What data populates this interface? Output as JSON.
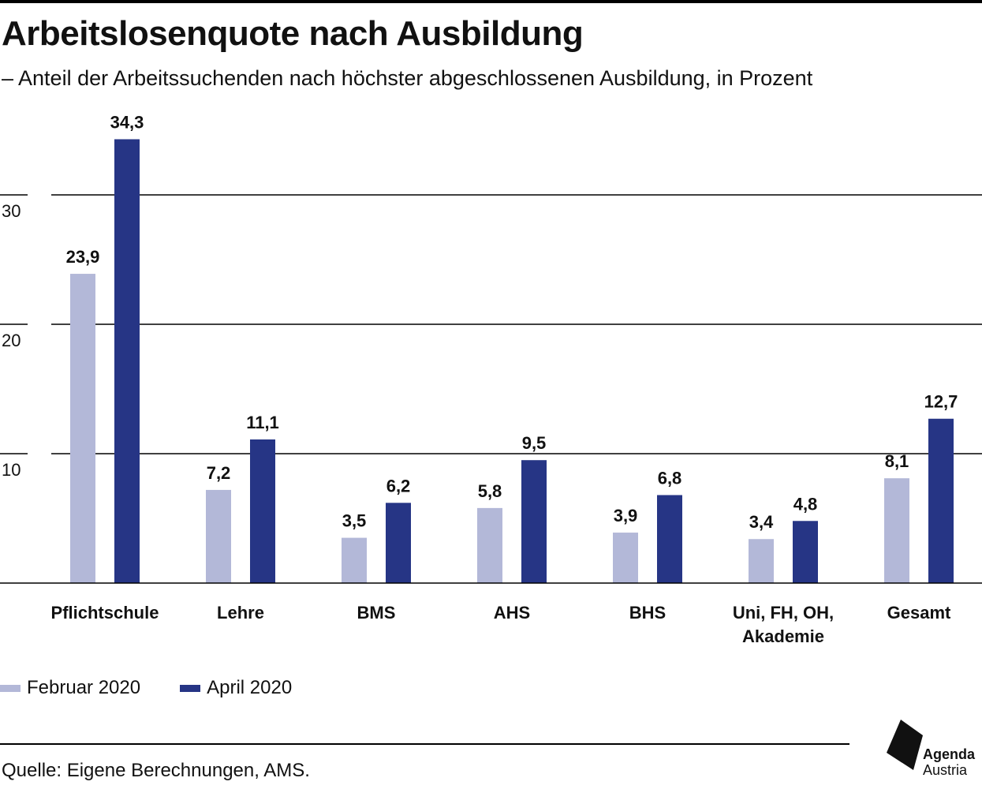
{
  "header": {
    "title": "Arbeitslosenquote nach Ausbildung",
    "subtitle": "– Anteil der Arbeitssuchenden nach höchster abgeschlossenen Ausbildung, in Prozent"
  },
  "chart_data": {
    "type": "bar",
    "title": "Arbeitslosenquote nach Ausbildung",
    "subtitle": "– Anteil der Arbeitssuchenden nach höchster abgeschlossenen Ausbildung, in Prozent",
    "categories": [
      [
        "Pflichtschule"
      ],
      [
        "Lehre"
      ],
      [
        "BMS"
      ],
      [
        "AHS"
      ],
      [
        "BHS"
      ],
      [
        "Uni, FH, OH,",
        "Akademie"
      ],
      [
        "Gesamt"
      ]
    ],
    "series": [
      {
        "name": "Februar 2020",
        "color": "#b3b8d8",
        "values": [
          23.9,
          7.2,
          3.5,
          5.8,
          3.9,
          3.4,
          8.1
        ],
        "labels": [
          "23,9",
          "7,2",
          "3,5",
          "5,8",
          "3,9",
          "3,4",
          "8,1"
        ]
      },
      {
        "name": "April 2020",
        "color": "#263585",
        "values": [
          34.3,
          11.1,
          6.2,
          9.5,
          6.8,
          4.8,
          12.7
        ],
        "labels": [
          "34,3",
          "11,1",
          "6,2",
          "9,5",
          "6,8",
          "4,8",
          "12,7"
        ]
      }
    ],
    "yticks": [
      10,
      20,
      30
    ],
    "ytick_labels": [
      "10",
      "20",
      "30"
    ],
    "ylim": [
      0,
      36
    ],
    "xlabel": "",
    "ylabel": "",
    "grid": true,
    "legend": "bottom-left"
  },
  "legend": {
    "items": [
      {
        "label": "Februar 2020",
        "color": "#b3b8d8"
      },
      {
        "label": "April 2020",
        "color": "#263585"
      }
    ]
  },
  "footer": {
    "source": "Quelle: Eigene Berechnungen, AMS.",
    "logo_line1": "Agenda",
    "logo_line2": "Austria"
  }
}
